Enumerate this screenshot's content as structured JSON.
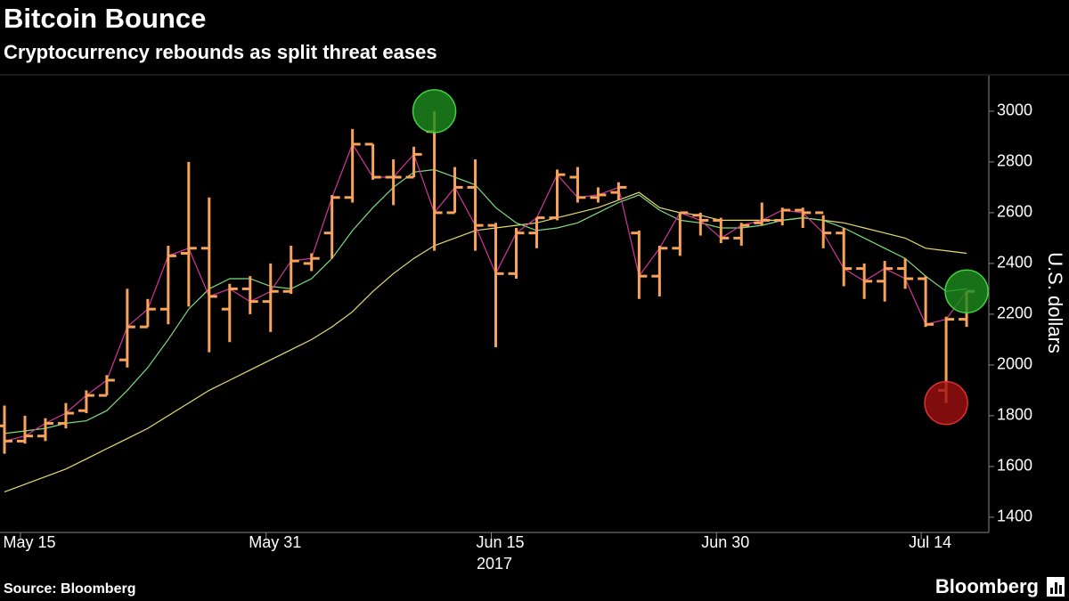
{
  "chart_data": {
    "type": "ohlc",
    "title": "Bitcoin Bounce",
    "subtitle": "Cryptocurrency rebounds as split threat eases",
    "y_label": "U.S. dollars",
    "x_year_label": "2017",
    "source": "Source: Bloomberg",
    "brand": "Bloomberg",
    "categories": [
      null,
      "May 15",
      null,
      null,
      null,
      null,
      null,
      null,
      null,
      null,
      null,
      null,
      null,
      "May 31",
      null,
      null,
      null,
      null,
      null,
      null,
      null,
      null,
      null,
      null,
      "Jun 15",
      null,
      null,
      null,
      null,
      null,
      null,
      null,
      null,
      null,
      null,
      "Jun 30",
      null,
      null,
      null,
      null,
      null,
      null,
      null,
      null,
      null,
      "Jul 14",
      null,
      null
    ],
    "open": [
      1760,
      1700,
      1720,
      1770,
      1820,
      1880,
      2020,
      2150,
      2220,
      2440,
      2460,
      2220,
      2300,
      2250,
      2290,
      2400,
      2520,
      2660,
      2870,
      2740,
      2740,
      2920,
      2600,
      2700,
      2550,
      2360,
      2520,
      2580,
      2740,
      2660,
      2680,
      2520,
      2350,
      2460,
      2590,
      2570,
      2500,
      2560,
      2570,
      2610,
      2600,
      2520,
      2380,
      2330,
      2380,
      2340,
      1900,
      2180
    ],
    "high": [
      1840,
      1800,
      1790,
      1850,
      1900,
      1960,
      2300,
      2260,
      2470,
      2800,
      2660,
      2320,
      2350,
      2400,
      2470,
      2440,
      2670,
      2930,
      2870,
      2810,
      2860,
      3000,
      2780,
      2810,
      2560,
      2540,
      2580,
      2770,
      2780,
      2700,
      2720,
      2530,
      2470,
      2600,
      2600,
      2580,
      2560,
      2640,
      2620,
      2620,
      2590,
      2540,
      2400,
      2410,
      2420,
      2350,
      2190,
      2290
    ],
    "low": [
      1650,
      1690,
      1700,
      1750,
      1810,
      1880,
      1990,
      2150,
      2160,
      2230,
      2050,
      2090,
      2200,
      2130,
      2280,
      2370,
      2420,
      2640,
      2730,
      2630,
      2740,
      2450,
      2600,
      2450,
      2070,
      2340,
      2460,
      2570,
      2640,
      2640,
      2650,
      2260,
      2270,
      2430,
      2510,
      2480,
      2470,
      2550,
      2550,
      2540,
      2460,
      2310,
      2260,
      2250,
      2300,
      2150,
      1850,
      2150
    ],
    "close": [
      1700,
      1720,
      1770,
      1810,
      1880,
      1940,
      2150,
      2220,
      2430,
      2460,
      2270,
      2300,
      2250,
      2290,
      2410,
      2420,
      2660,
      2870,
      2740,
      2740,
      2830,
      2600,
      2700,
      2550,
      2360,
      2520,
      2580,
      2750,
      2660,
      2670,
      2700,
      2350,
      2460,
      2600,
      2570,
      2500,
      2550,
      2570,
      2610,
      2600,
      2520,
      2380,
      2330,
      2380,
      2340,
      2160,
      2180,
      2290
    ],
    "bar_color": "#f7a35c",
    "close_line_color": "#d6339e",
    "moving_averages": [
      {
        "color": "#7fdc7f",
        "values": [
          1730,
          1740,
          1750,
          1770,
          1780,
          1820,
          1900,
          1990,
          2100,
          2220,
          2300,
          2340,
          2340,
          2310,
          2300,
          2340,
          2420,
          2530,
          2620,
          2700,
          2760,
          2770,
          2740,
          2710,
          2620,
          2560,
          2530,
          2540,
          2560,
          2600,
          2640,
          2670,
          2610,
          2570,
          2560,
          2540,
          2540,
          2550,
          2570,
          2580,
          2570,
          2540,
          2500,
          2460,
          2420,
          2350,
          2290,
          2300
        ]
      },
      {
        "color": "#e6dc72",
        "values": [
          1500,
          1530,
          1560,
          1590,
          1630,
          1670,
          1710,
          1750,
          1800,
          1850,
          1900,
          1940,
          1980,
          2020,
          2060,
          2100,
          2150,
          2210,
          2290,
          2360,
          2420,
          2470,
          2500,
          2530,
          2540,
          2550,
          2560,
          2580,
          2600,
          2620,
          2650,
          2680,
          2620,
          2600,
          2590,
          2570,
          2570,
          2570,
          2570,
          2580,
          2570,
          2560,
          2540,
          2520,
          2500,
          2460,
          2450,
          2440
        ]
      }
    ],
    "ylim": [
      1340,
      3140
    ],
    "yticks": [
      1400,
      1600,
      1800,
      2000,
      2200,
      2400,
      2600,
      2800,
      3000
    ]
  }
}
